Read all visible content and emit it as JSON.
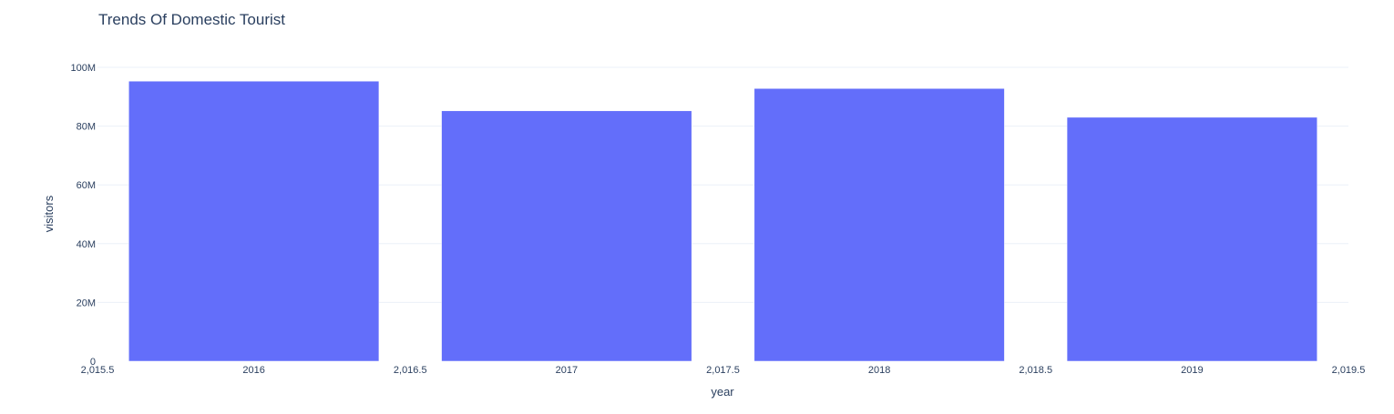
{
  "chart_data": {
    "type": "bar",
    "title": "Trends Of Domestic Tourist",
    "xlabel": "year",
    "ylabel": "visitors",
    "categories": [
      "2016",
      "2017",
      "2018",
      "2019"
    ],
    "x": [
      2016,
      2017,
      2018,
      2019
    ],
    "values": [
      95300000,
      85200000,
      92800000,
      83000000
    ],
    "xlim": [
      2015.5,
      2019.5
    ],
    "ylim": [
      0,
      100000000
    ],
    "x_ticks": [
      "2,015.5",
      "2016",
      "2,016.5",
      "2017",
      "2,017.5",
      "2018",
      "2,018.5",
      "2019",
      "2,019.5"
    ],
    "x_tick_values": [
      2015.5,
      2016,
      2016.5,
      2017,
      2017.5,
      2018,
      2018.5,
      2019,
      2019.5
    ],
    "y_ticks": [
      "0",
      "20M",
      "40M",
      "60M",
      "80M",
      "100M"
    ],
    "y_tick_values": [
      0,
      20000000,
      40000000,
      60000000,
      80000000,
      100000000
    ],
    "grid": true,
    "bar_color": "#636efa",
    "gridline_color": "#ebf0f8",
    "text_color": "#2a3f5f"
  }
}
